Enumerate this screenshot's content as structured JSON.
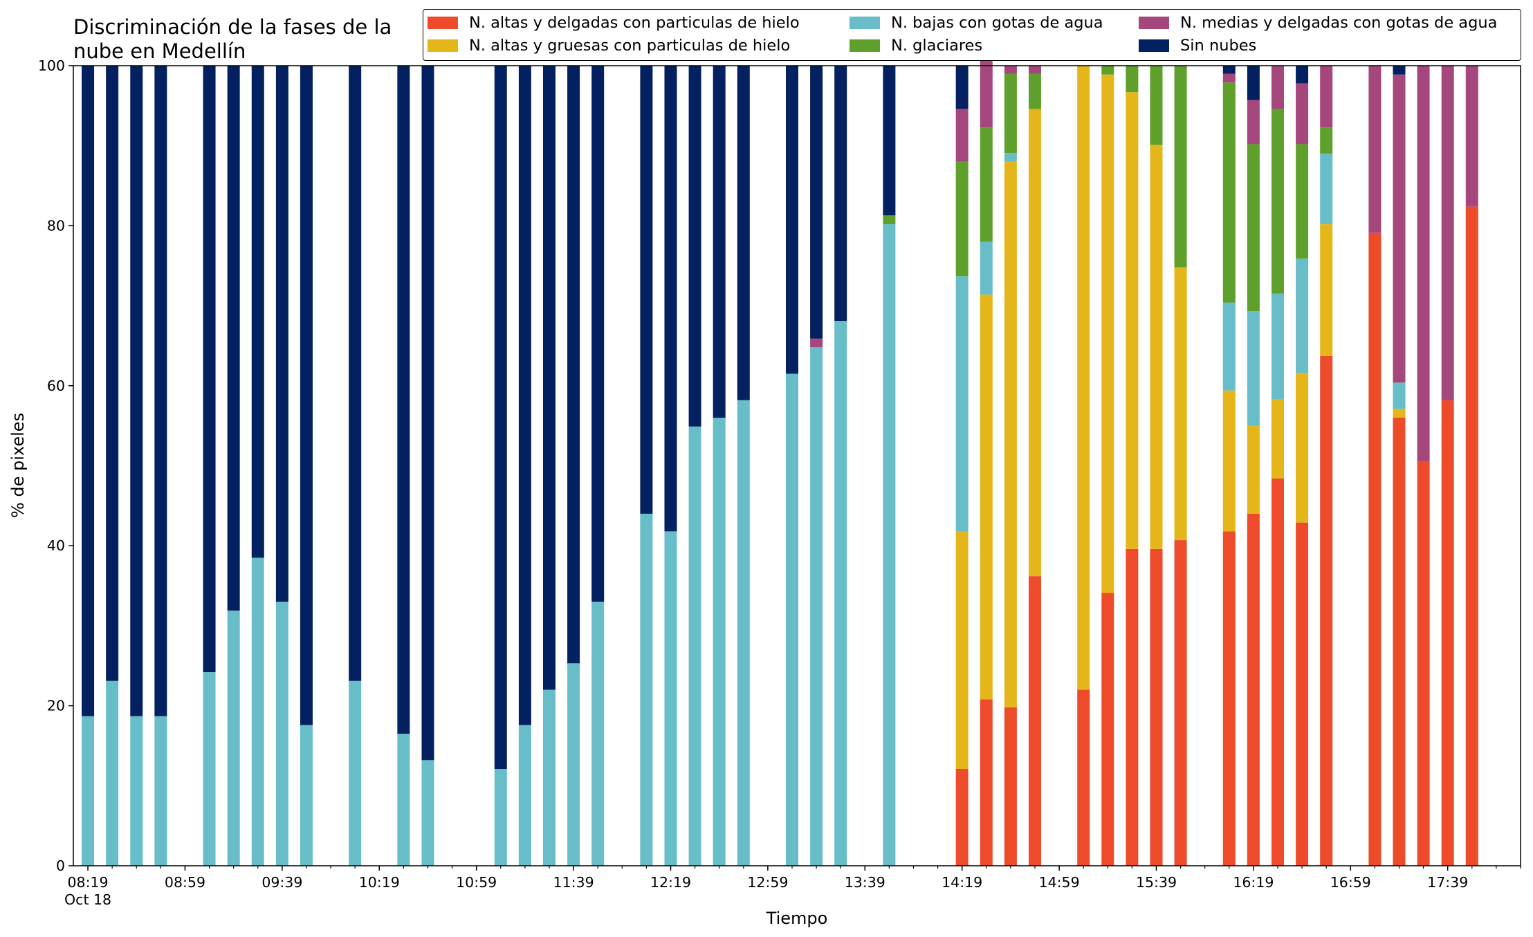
{
  "chart_data": {
    "type": "bar",
    "stacked": true,
    "title": "Discriminación de la fases de la nube en Medellín",
    "title_lines": [
      "Discriminación de la fases de la",
      "nube en Medellín"
    ],
    "xlabel": "Tiempo",
    "ylabel": "% de pixeles",
    "ylim": [
      0,
      100
    ],
    "yticks": [
      0,
      20,
      40,
      60,
      80,
      100
    ],
    "xlim": [
      "08:13",
      "18:09"
    ],
    "xtick_labels": [
      "08:19",
      "08:59",
      "09:39",
      "10:19",
      "10:59",
      "11:39",
      "12:19",
      "12:59",
      "13:39",
      "14:19",
      "14:59",
      "15:39",
      "16:19",
      "16:59",
      "17:39"
    ],
    "date_label": "Oct 18",
    "legend_position": "top",
    "x": [
      "08:19",
      "08:29",
      "08:39",
      "08:49",
      "09:09",
      "09:19",
      "09:29",
      "09:39",
      "09:49",
      "10:09",
      "10:29",
      "10:39",
      "11:09",
      "11:19",
      "11:29",
      "11:39",
      "11:49",
      "12:09",
      "12:19",
      "12:29",
      "12:39",
      "12:49",
      "13:09",
      "13:19",
      "13:29",
      "13:49",
      "14:19",
      "14:29",
      "14:39",
      "14:49",
      "15:09",
      "15:19",
      "15:29",
      "15:39",
      "15:49",
      "16:09",
      "16:19",
      "16:29",
      "16:39",
      "16:49",
      "17:09",
      "17:19",
      "17:29",
      "17:39",
      "17:49"
    ],
    "series": [
      {
        "name": "N. altas y delgadas con particulas de hielo",
        "color": "#ee4b2b",
        "values": [
          0,
          0,
          0,
          0,
          0,
          0,
          0,
          0,
          0,
          0,
          0,
          0,
          0,
          0,
          0,
          0,
          0,
          0,
          0,
          0,
          0,
          0,
          0,
          0,
          0,
          0,
          12.1,
          20.8,
          19.8,
          36.2,
          22.0,
          34.1,
          39.6,
          39.6,
          40.7,
          41.8,
          44.0,
          48.4,
          42.9,
          63.7,
          79.1,
          56.0,
          50.5,
          58.2,
          82.4
        ]
      },
      {
        "name": "N. altas y gruesas con particulas de hielo",
        "color": "#e4b61a",
        "values": [
          0,
          0,
          0,
          0,
          0,
          0,
          0,
          0,
          0,
          0,
          0,
          0,
          0,
          0,
          0,
          0,
          0,
          0,
          0,
          0,
          0,
          0,
          0,
          0,
          0,
          0,
          29.7,
          50.6,
          68.2,
          58.4,
          78.0,
          64.8,
          57.1,
          50.5,
          34.1,
          17.6,
          11.0,
          9.9,
          18.7,
          16.5,
          0,
          1.1,
          0,
          0,
          0
        ]
      },
      {
        "name": "N. bajas con gotas de agua",
        "color": "#67bdc8",
        "values": [
          18.7,
          23.1,
          18.7,
          18.7,
          24.2,
          31.9,
          38.5,
          33.0,
          17.6,
          23.1,
          16.5,
          13.2,
          12.1,
          17.6,
          22.0,
          25.3,
          33.0,
          44.0,
          41.8,
          54.9,
          56.0,
          58.2,
          61.5,
          64.8,
          68.1,
          80.2,
          31.9,
          6.6,
          1.1,
          0,
          0,
          0,
          0,
          0,
          0,
          11.0,
          14.3,
          13.2,
          14.3,
          8.8,
          0,
          3.3,
          0,
          0,
          0
        ]
      },
      {
        "name": "N. glaciares",
        "color": "#5fa02d",
        "values": [
          0,
          0,
          0,
          0,
          0,
          0,
          0,
          0,
          0,
          0,
          0,
          0,
          0,
          0,
          0,
          0,
          0,
          0,
          0,
          0,
          0,
          0,
          0,
          0,
          0,
          1.1,
          14.3,
          14.3,
          9.9,
          4.4,
          0,
          1.1,
          3.3,
          9.9,
          25.2,
          27.5,
          20.9,
          23.1,
          14.3,
          3.3,
          0,
          0,
          0,
          0,
          0
        ]
      },
      {
        "name": "N. medias y delgadas con gotas de agua",
        "color": "#a5467c",
        "values": [
          0,
          0,
          0,
          0,
          0,
          0,
          0,
          0,
          0,
          0,
          0,
          0,
          0,
          0,
          0,
          0,
          0,
          0,
          0,
          0,
          0,
          0,
          0,
          1.1,
          0,
          0,
          6.6,
          8.3,
          1.0,
          1.0,
          0,
          0,
          0,
          0,
          0,
          1.1,
          5.5,
          5.4,
          7.6,
          7.7,
          20.9,
          38.5,
          49.5,
          41.8,
          17.6
        ]
      },
      {
        "name": "Sin nubes",
        "color": "#032060",
        "values": [
          81.3,
          76.9,
          81.3,
          81.3,
          75.8,
          68.1,
          61.5,
          67.0,
          82.4,
          76.9,
          83.5,
          86.8,
          87.9,
          82.4,
          78.0,
          74.7,
          67.0,
          56.0,
          58.2,
          45.1,
          44.0,
          41.8,
          38.5,
          34.1,
          31.9,
          18.7,
          5.4,
          0,
          0,
          0,
          0,
          0,
          0,
          0,
          0,
          1.0,
          4.3,
          0,
          2.2,
          0,
          0,
          1.1,
          0,
          0,
          0
        ]
      }
    ]
  }
}
